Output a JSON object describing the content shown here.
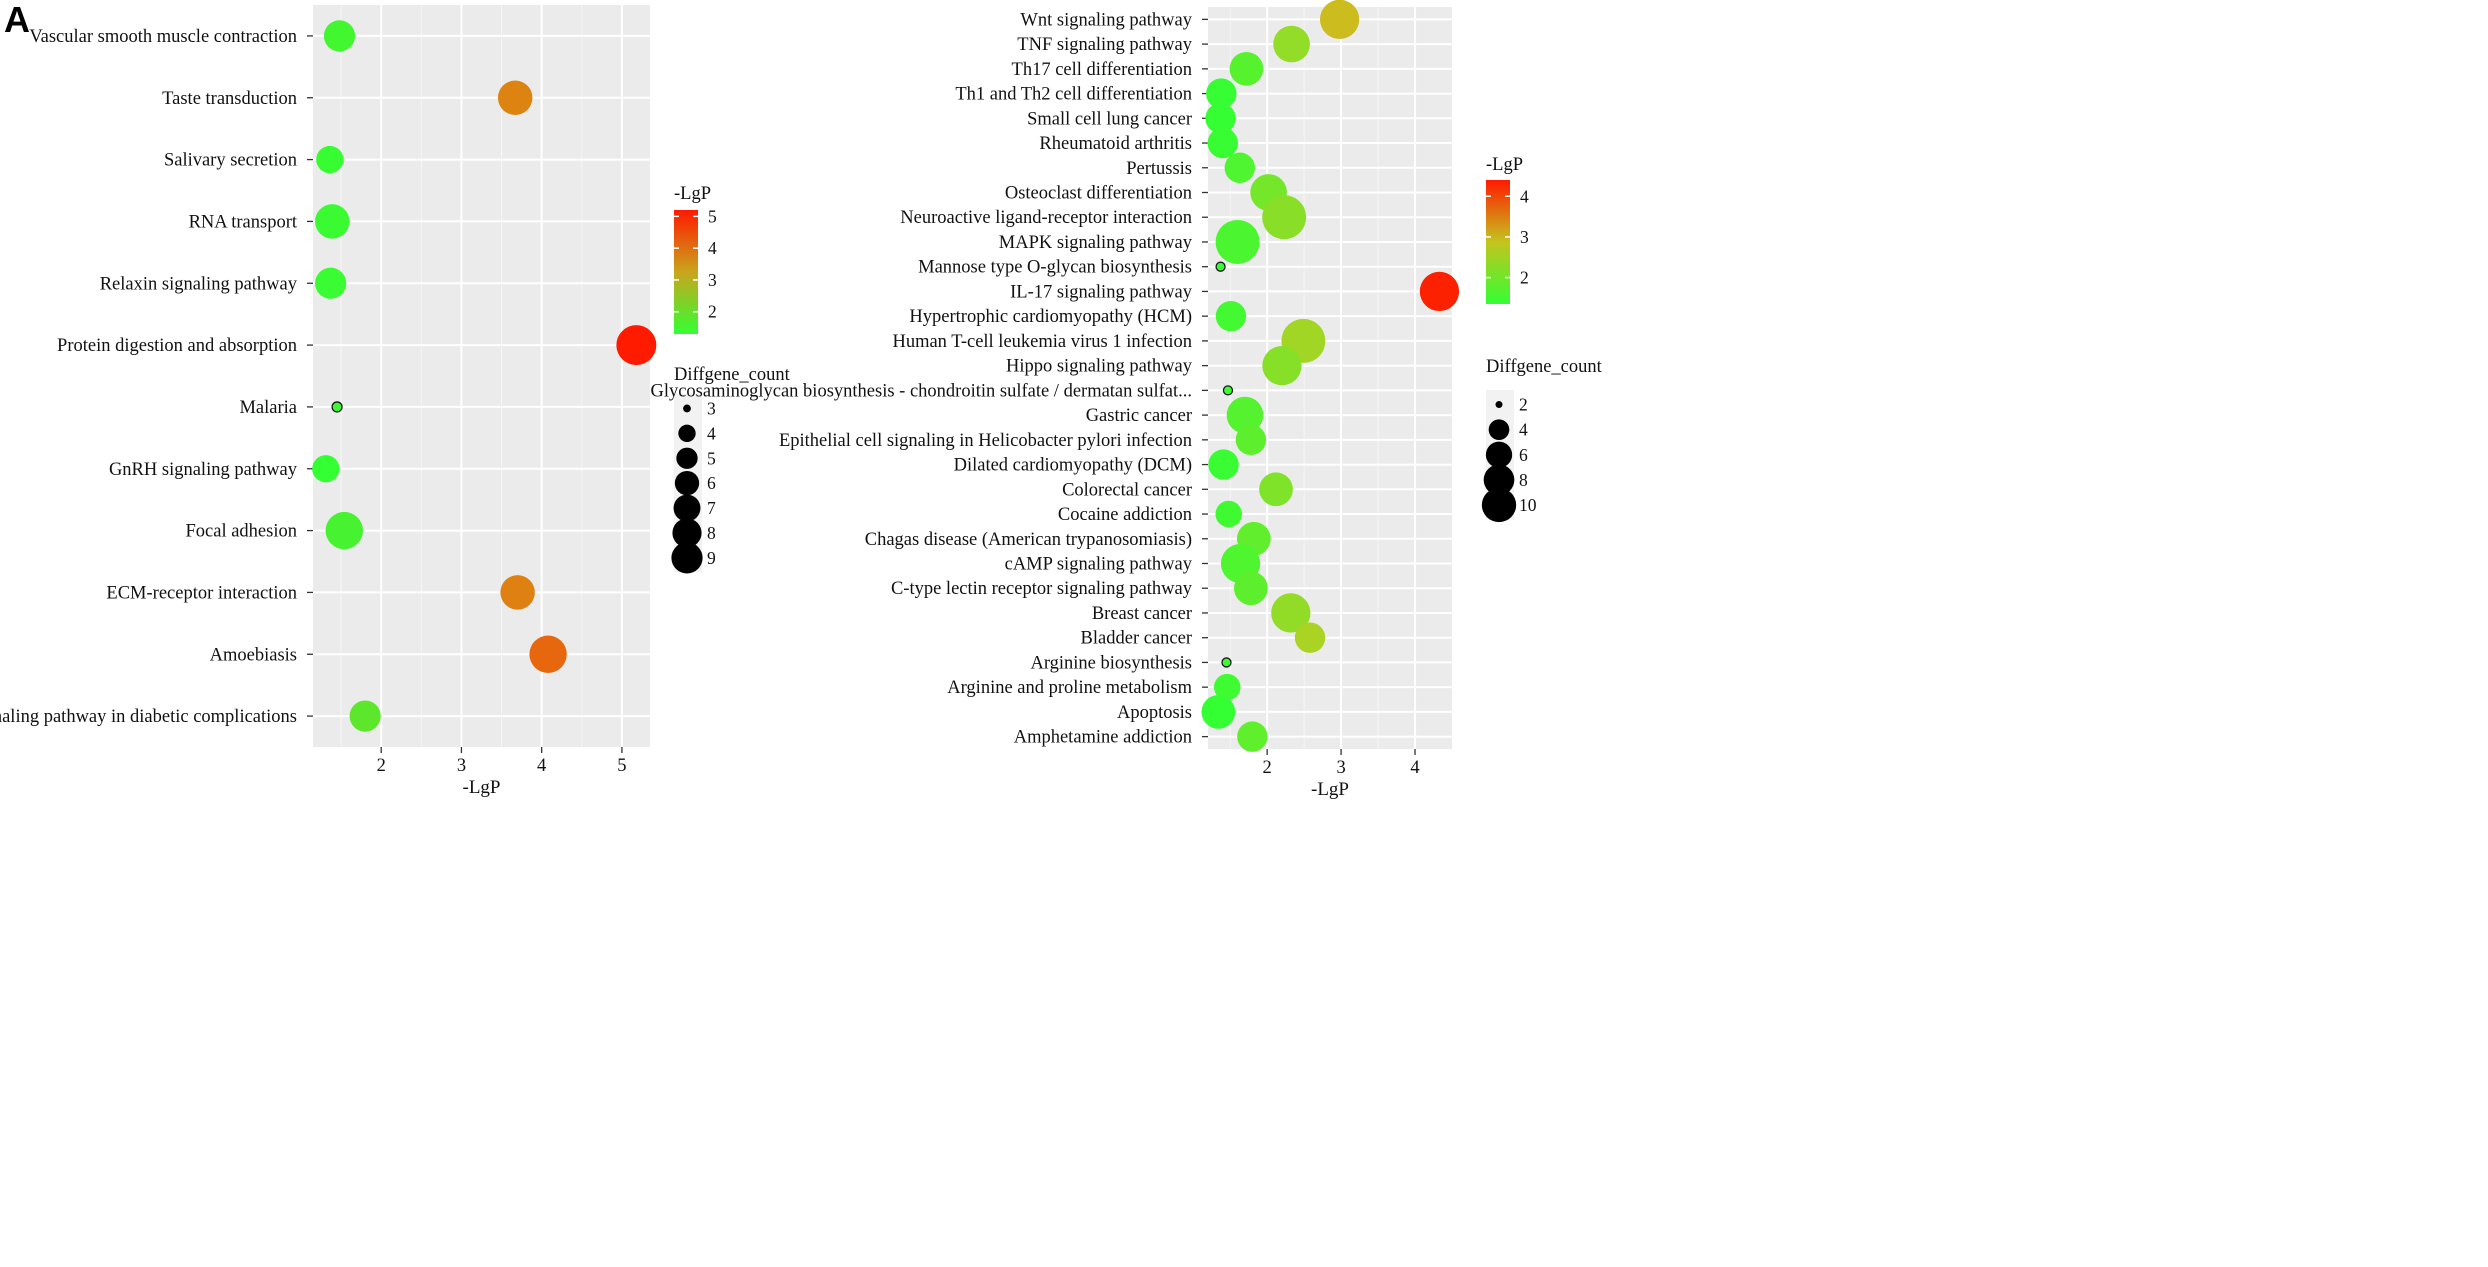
{
  "chart_data": [
    {
      "panel": "A",
      "type": "scatter",
      "subtype": "bubble",
      "xlabel": "-LgP",
      "ylabel": "",
      "xlim": [
        1.15,
        5.35
      ],
      "xticks": [
        2,
        3,
        4,
        5
      ],
      "grid": true,
      "color_legend": {
        "title": "-LgP",
        "min": 1.3,
        "max": 5.2,
        "ticks": [
          2,
          3,
          4,
          5
        ],
        "low_color": "#33ff33",
        "mid_color": "#d4a017",
        "high_color": "#ff1a00"
      },
      "size_legend": {
        "title": "Diffgene_count",
        "values": [
          3,
          4,
          5,
          6,
          7,
          8,
          9
        ]
      },
      "points": [
        {
          "term": "Vascular smooth muscle contraction",
          "x": 1.48,
          "count": 6
        },
        {
          "term": "Taste transduction",
          "x": 3.67,
          "count": 7
        },
        {
          "term": "Salivary secretion",
          "x": 1.36,
          "count": 5
        },
        {
          "term": "RNA transport",
          "x": 1.39,
          "count": 7
        },
        {
          "term": "Relaxin signaling pathway",
          "x": 1.37,
          "count": 6
        },
        {
          "term": "Protein digestion and absorption",
          "x": 5.18,
          "count": 9
        },
        {
          "term": "Malaria",
          "x": 1.45,
          "count": 3
        },
        {
          "term": "GnRH signaling pathway",
          "x": 1.31,
          "count": 5
        },
        {
          "term": "Focal adhesion",
          "x": 1.54,
          "count": 8
        },
        {
          "term": "ECM-receptor interaction",
          "x": 3.7,
          "count": 7
        },
        {
          "term": "Amoebiasis",
          "x": 4.08,
          "count": 8
        },
        {
          "term": "AGE-RAGE signaling pathway in diabetic complications",
          "x": 1.8,
          "count": 6
        }
      ]
    },
    {
      "panel": "B",
      "type": "scatter",
      "subtype": "bubble",
      "xlabel": "-LgP",
      "ylabel": "",
      "xlim": [
        1.2,
        4.5
      ],
      "xticks": [
        2,
        3,
        4
      ],
      "grid": true,
      "color_legend": {
        "title": "-LgP",
        "min": 1.35,
        "max": 4.4,
        "ticks": [
          2,
          3,
          4
        ],
        "low_color": "#33ff33",
        "mid_color": "#c8c820",
        "high_color": "#ff1a00"
      },
      "size_legend": {
        "title": "Diffgene_count",
        "values": [
          2,
          4,
          6,
          8,
          10
        ]
      },
      "points": [
        {
          "term": "Wnt signaling pathway",
          "x": 2.98,
          "count": 8
        },
        {
          "term": "TNF signaling pathway",
          "x": 2.33,
          "count": 7
        },
        {
          "term": "Th17 cell differentiation",
          "x": 1.72,
          "count": 6
        },
        {
          "term": "Th1 and Th2 cell differentiation",
          "x": 1.38,
          "count": 5
        },
        {
          "term": "Small cell lung cancer",
          "x": 1.37,
          "count": 5
        },
        {
          "term": "Rheumatoid arthritis",
          "x": 1.4,
          "count": 5
        },
        {
          "term": "Pertussis",
          "x": 1.63,
          "count": 5
        },
        {
          "term": "Osteoclast differentiation",
          "x": 2.02,
          "count": 7
        },
        {
          "term": "Neuroactive ligand-receptor interaction",
          "x": 2.23,
          "count": 10
        },
        {
          "term": "MAPK signaling pathway",
          "x": 1.6,
          "count": 10
        },
        {
          "term": "Mannose type O-glycan biosynthesis",
          "x": 1.37,
          "count": 2
        },
        {
          "term": "IL-17 signaling pathway",
          "x": 4.33,
          "count": 8
        },
        {
          "term": "Hypertrophic cardiomyopathy (HCM)",
          "x": 1.51,
          "count": 5
        },
        {
          "term": "Human T-cell leukemia virus 1 infection",
          "x": 2.49,
          "count": 10
        },
        {
          "term": "Hippo signaling pathway",
          "x": 2.2,
          "count": 8
        },
        {
          "term": "Glycosaminoglycan biosynthesis - chondroitin sulfate / dermatan sulfat...",
          "x": 1.47,
          "count": 2
        },
        {
          "term": "Gastric cancer",
          "x": 1.7,
          "count": 7
        },
        {
          "term": "Epithelial cell signaling in Helicobacter pylori infection",
          "x": 1.78,
          "count": 5
        },
        {
          "term": "Dilated cardiomyopathy (DCM)",
          "x": 1.41,
          "count": 5
        },
        {
          "term": "Colorectal cancer",
          "x": 2.12,
          "count": 6
        },
        {
          "term": "Cocaine addiction",
          "x": 1.48,
          "count": 4
        },
        {
          "term": "Chagas disease (American trypanosomiasis)",
          "x": 1.82,
          "count": 6
        },
        {
          "term": "cAMP signaling pathway",
          "x": 1.64,
          "count": 8
        },
        {
          "term": "C-type lectin receptor signaling pathway",
          "x": 1.78,
          "count": 6
        },
        {
          "term": "Breast cancer",
          "x": 2.32,
          "count": 8
        },
        {
          "term": "Bladder cancer",
          "x": 2.58,
          "count": 5
        },
        {
          "term": "Arginine biosynthesis",
          "x": 1.45,
          "count": 2
        },
        {
          "term": "Arginine and proline metabolism",
          "x": 1.46,
          "count": 4
        },
        {
          "term": "Apoptosis",
          "x": 1.34,
          "count": 6
        },
        {
          "term": "Amphetamine addiction",
          "x": 1.8,
          "count": 5
        }
      ]
    }
  ]
}
